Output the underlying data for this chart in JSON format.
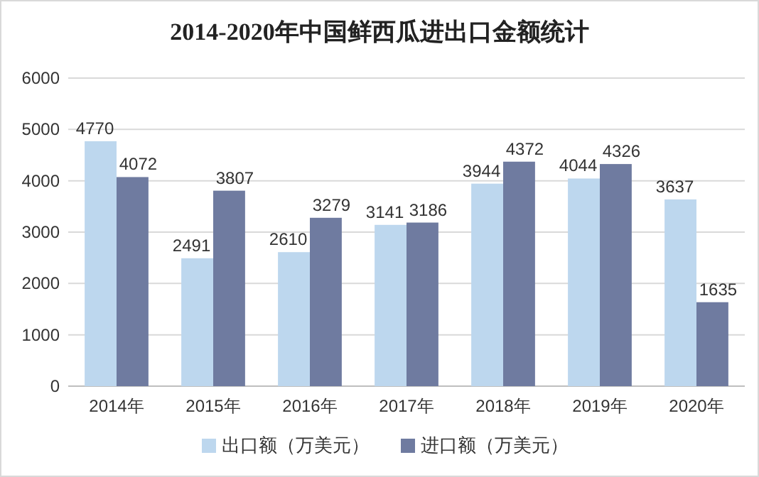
{
  "chart_data": {
    "type": "bar",
    "title": "2014-2020年中国鲜西瓜进出口金额统计",
    "categories": [
      "2014年",
      "2015年",
      "2016年",
      "2017年",
      "2018年",
      "2019年",
      "2020年"
    ],
    "series": [
      {
        "name": "出口额（万美元）",
        "color": "#bdd7ee",
        "values": [
          4770,
          2491,
          2610,
          3141,
          3944,
          4044,
          3637
        ]
      },
      {
        "name": "进口额（万美元）",
        "color": "#6f7ba0",
        "values": [
          4072,
          3807,
          3279,
          3186,
          4372,
          4326,
          1635
        ]
      }
    ],
    "ylim": [
      0,
      6000
    ],
    "yticks": [
      0,
      1000,
      2000,
      3000,
      4000,
      5000,
      6000
    ],
    "grid": "y",
    "legend": "bottom",
    "data_labels": true
  }
}
